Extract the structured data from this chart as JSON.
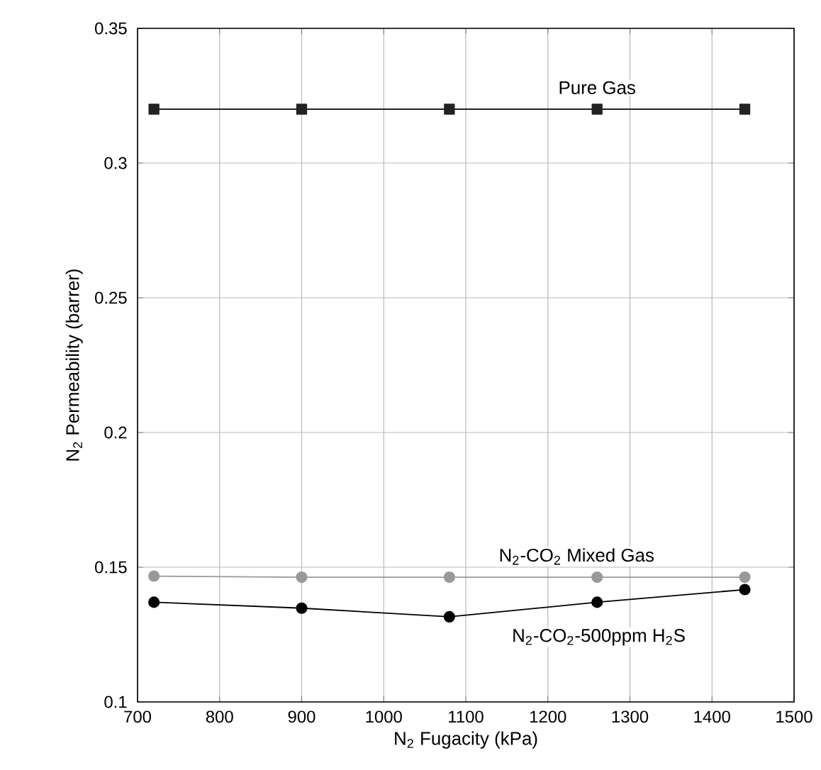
{
  "chart_data": {
    "type": "line",
    "xlabel": "N$_{2}$ Fugacity (kPa)",
    "ylabel": "N$_{2}$ Permeability (barrer)",
    "x": [
      720,
      900,
      1080,
      1260,
      1440
    ],
    "series": [
      {
        "name": "Pure Gas",
        "color": "#222222",
        "marker": "square",
        "values": [
          0.32,
          0.32,
          0.32,
          0.32,
          0.32
        ]
      },
      {
        "name": "N$_{2}$-CO$_{2}$ Mixed Gas",
        "color": "#999999",
        "marker": "circle",
        "values": [
          0.1467,
          0.1463,
          0.1463,
          0.1463,
          0.1463
        ]
      },
      {
        "name": "N$_{2}$-CO$_{2}$-500ppm H$_{2}$S",
        "color": "#000000",
        "marker": "circle",
        "values": [
          0.137,
          0.1348,
          0.1316,
          0.137,
          0.1417
        ]
      }
    ],
    "xlim": [
      700,
      1500
    ],
    "xticks": [
      700,
      800,
      900,
      1000,
      1100,
      1200,
      1300,
      1400,
      1500
    ],
    "ylim": [
      0.1,
      0.35
    ],
    "yticks": [
      0.1,
      0.15,
      0.2,
      0.25,
      0.3,
      0.35
    ],
    "grid": true
  }
}
